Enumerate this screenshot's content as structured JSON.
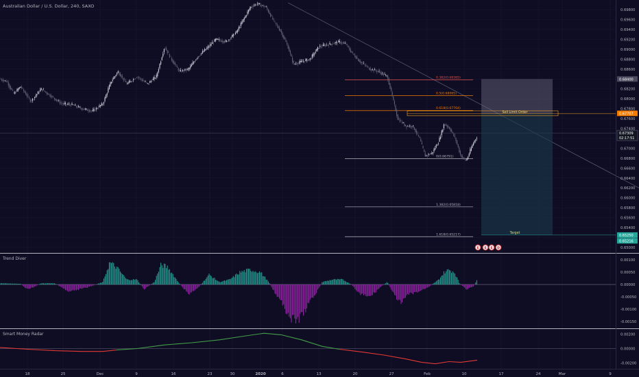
{
  "chart_data": [
    {
      "type": "candlestick",
      "title": "Australian Dollar / U.S. Dollar, 240, SAXO",
      "y_ticks": [
        "0.69800",
        "0.69600",
        "0.69400",
        "0.69200",
        "0.69000",
        "0.68800",
        "0.68600",
        "0.68400",
        "0.68200",
        "0.68000",
        "0.67800",
        "0.67600",
        "0.67400",
        "0.67200",
        "0.67000",
        "0.66800",
        "0.66600",
        "0.66400",
        "0.66200",
        "0.66000",
        "0.65800",
        "0.65600",
        "0.65400",
        "0.65200",
        "0.65000"
      ],
      "ylim": [
        0.6493,
        0.6994
      ],
      "x_ticks": [
        "18",
        "25",
        "Dec",
        "9",
        "16",
        "23",
        "30",
        "2020",
        "6",
        "13",
        "20",
        "27",
        "Feb",
        "10",
        "17",
        "24",
        "Mar",
        "9"
      ],
      "price_path": [
        [
          0,
          0.684
        ],
        [
          10,
          0.6835
        ],
        [
          20,
          0.681
        ],
        [
          30,
          0.6825
        ],
        [
          45,
          0.6795
        ],
        [
          60,
          0.682
        ],
        [
          75,
          0.6805
        ],
        [
          90,
          0.679
        ],
        [
          105,
          0.6788
        ],
        [
          120,
          0.678
        ],
        [
          135,
          0.6775
        ],
        [
          150,
          0.679
        ],
        [
          162,
          0.6835
        ],
        [
          172,
          0.6855
        ],
        [
          185,
          0.683
        ],
        [
          200,
          0.6845
        ],
        [
          215,
          0.683
        ],
        [
          228,
          0.6845
        ],
        [
          240,
          0.6905
        ],
        [
          250,
          0.688
        ],
        [
          262,
          0.6855
        ],
        [
          275,
          0.686
        ],
        [
          288,
          0.6885
        ],
        [
          300,
          0.69
        ],
        [
          315,
          0.692
        ],
        [
          330,
          0.6915
        ],
        [
          345,
          0.6935
        ],
        [
          355,
          0.696
        ],
        [
          365,
          0.6985
        ],
        [
          375,
          0.6992
        ],
        [
          388,
          0.6985
        ],
        [
          398,
          0.696
        ],
        [
          410,
          0.6935
        ],
        [
          420,
          0.6905
        ],
        [
          428,
          0.687
        ],
        [
          440,
          0.6875
        ],
        [
          452,
          0.688
        ],
        [
          465,
          0.6905
        ],
        [
          480,
          0.691
        ],
        [
          495,
          0.6915
        ],
        [
          505,
          0.691
        ],
        [
          512,
          0.6895
        ],
        [
          525,
          0.6875
        ],
        [
          540,
          0.686
        ],
        [
          552,
          0.6855
        ],
        [
          565,
          0.6845
        ],
        [
          573,
          0.68
        ],
        [
          580,
          0.676
        ],
        [
          592,
          0.6745
        ],
        [
          602,
          0.6745
        ],
        [
          612,
          0.672
        ],
        [
          620,
          0.6685
        ],
        [
          630,
          0.669
        ],
        [
          640,
          0.6715
        ],
        [
          648,
          0.675
        ],
        [
          656,
          0.674
        ],
        [
          664,
          0.672
        ],
        [
          672,
          0.6685
        ],
        [
          680,
          0.6675
        ],
        [
          690,
          0.671
        ],
        [
          696,
          0.6725
        ]
      ],
      "last_price": "0.67309",
      "countdown": "02:17:51",
      "fib_levels": [
        {
          "label": "0.382(0.68385)",
          "value": 0.68385,
          "color": "#e5534b"
        },
        {
          "label": "0.5(0.68065)",
          "value": 0.68065,
          "color": "#f57c00"
        },
        {
          "label": "0.618(0.67764)",
          "value": 0.67764,
          "color": "#f57c00"
        },
        {
          "label": "0(0.66791)",
          "value": 0.66791,
          "color": "#b2b5be"
        },
        {
          "label": "1.382(0.65818)",
          "value": 0.65818,
          "color": "#b2b5be"
        },
        {
          "label": "1.618(0.65217)",
          "value": 0.65217,
          "color": "#b2b5be"
        }
      ],
      "trendline": {
        "from": [
          420,
          0.6994
        ],
        "to": [
          932,
          0.662
        ]
      },
      "position": {
        "entry_label": "Sell Limit Order",
        "entry": 0.677,
        "stop": 0.684,
        "target": 0.6525,
        "target_label": "Target",
        "price_tags": [
          {
            "text": "0.68400",
            "color": "#4a4a5e"
          },
          {
            "text": "0.67707",
            "color": "#f57c00"
          },
          {
            "text": "0.65250",
            "color": "#26a69a"
          },
          {
            "text": "0.65216",
            "color": "#26a69a"
          }
        ]
      },
      "event_markers": [
        "E",
        "E",
        "E",
        "D"
      ]
    },
    {
      "type": "histogram",
      "title": "Trend Diver",
      "y_ticks": [
        "0.00100",
        "0.00050",
        "0.00000",
        "-0.00050",
        "-0.00100",
        "-0.00150"
      ],
      "ylim": [
        -0.0017,
        0.0012
      ],
      "zero_line": 0,
      "points": [
        [
          0,
          5e-05
        ],
        [
          30,
          3e-05
        ],
        [
          40,
          -0.0002
        ],
        [
          50,
          -0.0001
        ],
        [
          60,
          5e-05
        ],
        [
          80,
          5e-05
        ],
        [
          100,
          -0.0003
        ],
        [
          130,
          -0.0001
        ],
        [
          150,
          0.0001
        ],
        [
          160,
          0.0009
        ],
        [
          170,
          0.0007
        ],
        [
          185,
          0.0002
        ],
        [
          200,
          0.0002
        ],
        [
          210,
          -0.0002
        ],
        [
          225,
          0.0001
        ],
        [
          235,
          0.0008
        ],
        [
          245,
          0.0007
        ],
        [
          260,
          0.0001
        ],
        [
          275,
          -0.0004
        ],
        [
          290,
          -0.0001
        ],
        [
          305,
          0.0004
        ],
        [
          320,
          0.0001
        ],
        [
          335,
          0.0002
        ],
        [
          350,
          0.0005
        ],
        [
          365,
          0.0006
        ],
        [
          380,
          0.0005
        ],
        [
          392,
          0.0001
        ],
        [
          398,
          -0.0002
        ],
        [
          412,
          -0.0008
        ],
        [
          425,
          -0.0014
        ],
        [
          432,
          -0.0015
        ],
        [
          442,
          -0.0012
        ],
        [
          452,
          -0.0007
        ],
        [
          462,
          -0.0003
        ],
        [
          470,
          0.0001
        ],
        [
          485,
          0.0002
        ],
        [
          500,
          0.0002
        ],
        [
          512,
          1e-05
        ],
        [
          525,
          -0.0004
        ],
        [
          540,
          -0.0005
        ],
        [
          555,
          -0.0001
        ],
        [
          565,
          0.0001
        ],
        [
          572,
          -0.0003
        ],
        [
          585,
          -0.0008
        ],
        [
          595,
          -0.0004
        ],
        [
          610,
          -0.0003
        ],
        [
          625,
          -0.0001
        ],
        [
          640,
          0.0002
        ],
        [
          648,
          0.0005
        ],
        [
          655,
          0.0006
        ],
        [
          663,
          0.0005
        ],
        [
          670,
          5e-05
        ],
        [
          680,
          -0.0002
        ],
        [
          690,
          -0.0001
        ],
        [
          696,
          0.0002
        ]
      ]
    },
    {
      "type": "line",
      "title": "Smart Money Radar",
      "y_ticks": [
        "0.00200",
        "0.00000",
        "-0.00200"
      ],
      "ylim": [
        -0.0026,
        0.0025
      ],
      "reference_line": 0,
      "series": [
        {
          "color": "#e53935",
          "points": [
            [
              0,
              0.00015
            ],
            [
              40,
              -0.0001
            ],
            [
              80,
              -0.0003
            ],
            [
              120,
              -0.0004
            ],
            [
              150,
              -0.0004
            ],
            [
              170,
              -0.0002
            ]
          ]
        },
        {
          "color": "#43a047",
          "points": [
            [
              170,
              -0.0002
            ],
            [
              200,
              0.0
            ],
            [
              240,
              0.0005
            ],
            [
              280,
              0.0008
            ],
            [
              320,
              0.0012
            ],
            [
              355,
              0.0017
            ],
            [
              385,
              0.0021
            ],
            [
              410,
              0.0019
            ],
            [
              440,
              0.0012
            ],
            [
              470,
              0.0003
            ],
            [
              495,
              -0.0001
            ]
          ]
        },
        {
          "color": "#e53935",
          "points": [
            [
              495,
              -0.0001
            ],
            [
              530,
              -0.0005
            ],
            [
              560,
              -0.0009
            ],
            [
              590,
              -0.0014
            ],
            [
              615,
              -0.0019
            ],
            [
              635,
              -0.0021
            ],
            [
              655,
              -0.0018
            ],
            [
              672,
              -0.0019
            ],
            [
              696,
              -0.0016
            ]
          ]
        }
      ]
    }
  ],
  "colors": {
    "background": "#0f0d23",
    "axis_text": "#b2b5be",
    "grid": "#1b1932",
    "hist_positive": "#26a69a",
    "hist_negative": "#9c27b0",
    "position_stop": "#6a6a82",
    "position_target": "#1b3a4b"
  }
}
